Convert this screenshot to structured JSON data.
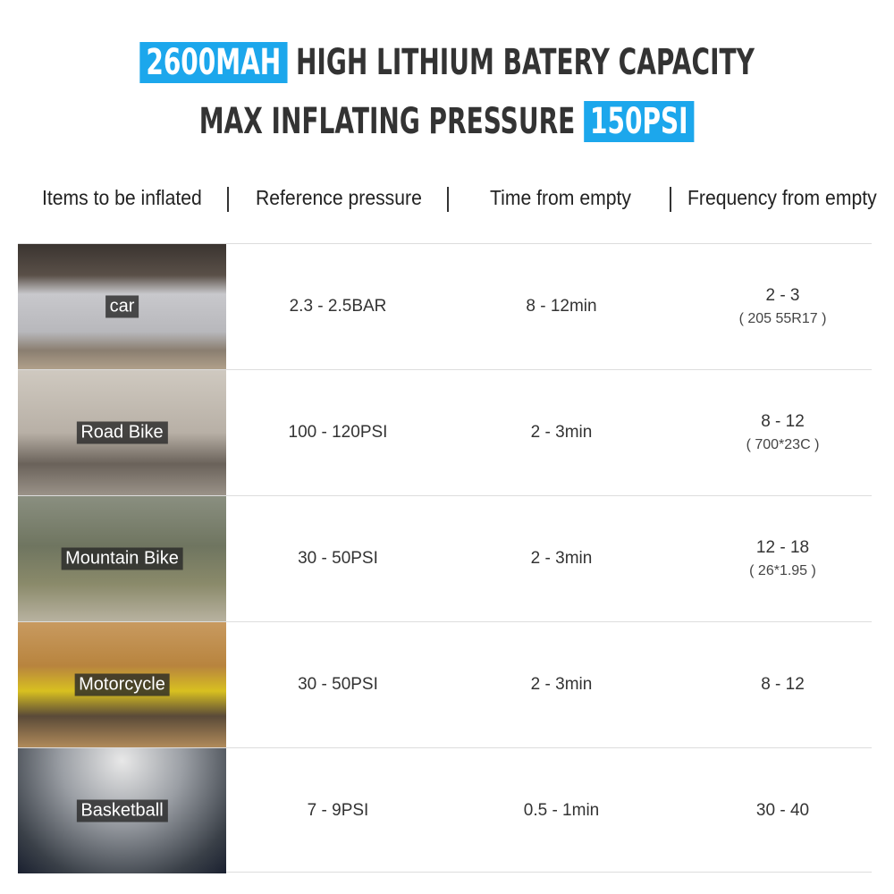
{
  "headline": {
    "line1_highlight": "2600MAH",
    "line1_text": "HIGH LITHIUM BATERY CAPACITY",
    "line2_text": "MAX INFLATING PRESSURE",
    "line2_highlight": "150PSI",
    "accent": "#1ca7ec"
  },
  "columns": [
    "Items to be inflated",
    "Reference pressure",
    "Time from empty",
    "Frequency from empty"
  ],
  "rows": [
    {
      "item": "car",
      "pressure": "2.3 - 2.5BAR",
      "time": "8 - 12min",
      "frequency": "2 - 3",
      "note": "( 205 55R17 )"
    },
    {
      "item": "Road Bike",
      "pressure": "100 - 120PSI",
      "time": "2 - 3min",
      "frequency": "8 - 12",
      "note": "( 700*23C )"
    },
    {
      "item": "Mountain Bike",
      "pressure": "30 - 50PSI",
      "time": "2 - 3min",
      "frequency": "12 - 18",
      "note": "( 26*1.95 )"
    },
    {
      "item": "Motorcycle",
      "pressure": "30 - 50PSI",
      "time": "2 - 3min",
      "frequency": "8 - 12"
    },
    {
      "item": "Basketball",
      "pressure": "7 - 9PSI",
      "time": "0.5 - 1min",
      "frequency": "30 - 40"
    }
  ]
}
